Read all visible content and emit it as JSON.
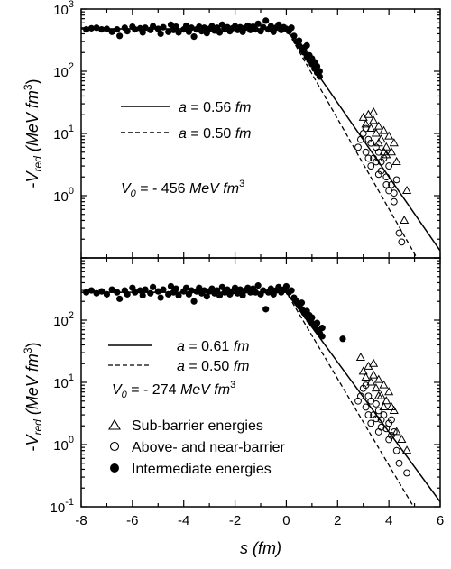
{
  "chart_data": [
    {
      "type": "scatter",
      "panel": "top",
      "ylabel": "-V_red (MeV fm^3)",
      "ylabel_parts": {
        "minus": "-",
        "v": "V",
        "sub": "red",
        "unit": "(MeV fm",
        "exp": "3",
        "close": ")"
      },
      "xlim": [
        -8,
        6
      ],
      "ylim_log10": [
        -1,
        3
      ],
      "yscale": "log",
      "yticks": [
        {
          "exp10": 3,
          "base": "10",
          "sup": "3"
        },
        {
          "exp10": 2,
          "base": "10",
          "sup": "2"
        },
        {
          "exp10": 1,
          "base": "10",
          "sup": "1"
        },
        {
          "exp10": 0,
          "base": "10",
          "sup": "0"
        }
      ],
      "annotations": {
        "line1": {
          "pre": "a",
          "eq": " = 0.56 ",
          "unit": "fm"
        },
        "line2": {
          "pre": "a",
          "eq": " = 0.50 ",
          "unit": "fm"
        },
        "v0": {
          "v": "V",
          "sub": "0",
          "eq": " = - 456 ",
          "unit": "MeV fm",
          "sup": "3"
        }
      },
      "series": [
        {
          "style": "solid",
          "x": [
            -8,
            0,
            6
          ],
          "y": [
            480,
            480,
            0.13
          ]
        },
        {
          "style": "dashed",
          "x": [
            -8,
            0,
            6
          ],
          "y": [
            480,
            480,
            0.022
          ]
        }
      ],
      "points_intermediate": [
        [
          -7.8,
          470
        ],
        [
          -7.6,
          490
        ],
        [
          -7.4,
          500
        ],
        [
          -7.2,
          470
        ],
        [
          -7.0,
          480
        ],
        [
          -6.8,
          430
        ],
        [
          -6.6,
          470
        ],
        [
          -6.5,
          370
        ],
        [
          -6.3,
          500
        ],
        [
          -6.2,
          440
        ],
        [
          -6.0,
          520
        ],
        [
          -5.9,
          470
        ],
        [
          -5.7,
          490
        ],
        [
          -5.6,
          420
        ],
        [
          -5.5,
          500
        ],
        [
          -5.3,
          460
        ],
        [
          -5.2,
          530
        ],
        [
          -5.0,
          480
        ],
        [
          -4.9,
          400
        ],
        [
          -4.8,
          510
        ],
        [
          -4.6,
          430
        ],
        [
          -4.5,
          560
        ],
        [
          -4.4,
          460
        ],
        [
          -4.3,
          520
        ],
        [
          -4.2,
          420
        ],
        [
          -4.0,
          470
        ],
        [
          -3.9,
          540
        ],
        [
          -3.8,
          430
        ],
        [
          -3.7,
          500
        ],
        [
          -3.6,
          360
        ],
        [
          -3.5,
          470
        ],
        [
          -3.4,
          520
        ],
        [
          -3.3,
          440
        ],
        [
          -3.2,
          500
        ],
        [
          -3.1,
          410
        ],
        [
          -3.0,
          480
        ],
        [
          -2.9,
          530
        ],
        [
          -2.8,
          450
        ],
        [
          -2.7,
          500
        ],
        [
          -2.6,
          420
        ],
        [
          -2.5,
          560
        ],
        [
          -2.4,
          470
        ],
        [
          -2.3,
          510
        ],
        [
          -2.2,
          440
        ],
        [
          -2.1,
          490
        ],
        [
          -2.0,
          530
        ],
        [
          -1.9,
          460
        ],
        [
          -1.8,
          510
        ],
        [
          -1.7,
          430
        ],
        [
          -1.6,
          500
        ],
        [
          -1.5,
          540
        ],
        [
          -1.4,
          460
        ],
        [
          -1.3,
          520
        ],
        [
          -1.2,
          470
        ],
        [
          -1.1,
          580
        ],
        [
          -1.0,
          440
        ],
        [
          -0.9,
          510
        ],
        [
          -0.8,
          650
        ],
        [
          -0.7,
          470
        ],
        [
          -0.6,
          530
        ],
        [
          -0.5,
          430
        ],
        [
          -0.4,
          500
        ],
        [
          -0.3,
          560
        ],
        [
          -0.2,
          460
        ],
        [
          -0.1,
          510
        ],
        [
          0.0,
          480
        ],
        [
          0.1,
          440
        ],
        [
          0.2,
          500
        ],
        [
          0.3,
          370
        ],
        [
          0.4,
          300
        ],
        [
          0.5,
          260
        ],
        [
          0.6,
          220
        ],
        [
          0.7,
          200
        ],
        [
          0.8,
          170
        ],
        [
          0.9,
          150
        ],
        [
          1.0,
          130
        ],
        [
          1.1,
          110
        ],
        [
          1.2,
          95
        ],
        [
          1.3,
          82
        ],
        [
          0.5,
          310
        ],
        [
          0.7,
          240
        ],
        [
          0.9,
          180
        ],
        [
          1.1,
          140
        ],
        [
          1.2,
          120
        ],
        [
          0.8,
          260
        ],
        [
          1.0,
          160
        ],
        [
          1.3,
          100
        ]
      ],
      "points_above": [
        [
          2.8,
          6
        ],
        [
          3.0,
          10
        ],
        [
          3.1,
          5
        ],
        [
          3.2,
          8
        ],
        [
          3.3,
          7
        ],
        [
          3.4,
          4
        ],
        [
          3.5,
          6
        ],
        [
          3.6,
          5
        ],
        [
          3.7,
          3.5
        ],
        [
          3.8,
          4
        ],
        [
          3.9,
          2
        ],
        [
          4.0,
          3
        ],
        [
          4.1,
          1.5
        ],
        [
          4.2,
          1.1
        ],
        [
          3.3,
          3
        ],
        [
          3.5,
          3.5
        ],
        [
          3.7,
          2.5
        ],
        [
          3.9,
          1.5
        ],
        [
          4.4,
          0.25
        ],
        [
          4.5,
          0.18
        ],
        [
          3.1,
          12
        ],
        [
          2.9,
          8
        ],
        [
          3.2,
          4
        ],
        [
          3.6,
          2.2
        ],
        [
          4.0,
          1.2
        ],
        [
          4.3,
          1.8
        ],
        [
          4.2,
          0.8
        ]
      ],
      "points_sub": [
        [
          3.0,
          18
        ],
        [
          3.1,
          14
        ],
        [
          3.2,
          20
        ],
        [
          3.3,
          12
        ],
        [
          3.4,
          16
        ],
        [
          3.5,
          10
        ],
        [
          3.6,
          13
        ],
        [
          3.7,
          8
        ],
        [
          3.8,
          11
        ],
        [
          3.9,
          6
        ],
        [
          4.0,
          9
        ],
        [
          4.1,
          5
        ],
        [
          4.2,
          7
        ],
        [
          3.4,
          22
        ],
        [
          3.8,
          5
        ],
        [
          4.3,
          3.5
        ],
        [
          4.6,
          0.4
        ],
        [
          4.7,
          1.2
        ],
        [
          3.6,
          7
        ],
        [
          3.9,
          4.5
        ]
      ]
    },
    {
      "type": "scatter",
      "panel": "bottom",
      "xlabel_parts": {
        "s": "s",
        "unit": " (fm)"
      },
      "ylabel": "-V_red (MeV fm^3)",
      "ylabel_parts": {
        "minus": "-",
        "v": "V",
        "sub": "red",
        "unit": "(MeV fm",
        "exp": "3",
        "close": ")"
      },
      "xlim": [
        -8,
        6
      ],
      "xticks": [
        "-8",
        "-6",
        "-4",
        "-2",
        "0",
        "2",
        "4",
        "6"
      ],
      "ylim_log10": [
        -1,
        3
      ],
      "yscale": "log",
      "yticks": [
        {
          "exp10": 2,
          "base": "10",
          "sup": "2"
        },
        {
          "exp10": 1,
          "base": "10",
          "sup": "1"
        },
        {
          "exp10": 0,
          "base": "10",
          "sup": "0"
        },
        {
          "exp10": -1,
          "base": "10",
          "sup": "-1"
        }
      ],
      "annotations": {
        "line1": {
          "pre": "a",
          "eq": " = 0.61 ",
          "unit": "fm"
        },
        "line2": {
          "pre": "a",
          "eq": " = 0.50 ",
          "unit": "fm"
        },
        "v0": {
          "v": "V",
          "sub": "0",
          "eq": " = - 274 ",
          "unit": "MeV fm",
          "sup": "3"
        }
      },
      "legend": {
        "sub": "Sub-barrier energies",
        "above": "Above- and near-barrier",
        "inter": "Intermediate energies"
      },
      "series": [
        {
          "style": "solid",
          "x": [
            -8,
            0,
            6
          ],
          "y": [
            280,
            280,
            0.12
          ]
        },
        {
          "style": "dashed",
          "x": [
            -8,
            0,
            6
          ],
          "y": [
            280,
            280,
            0.019
          ]
        }
      ],
      "points_intermediate": [
        [
          -7.8,
          280
        ],
        [
          -7.6,
          300
        ],
        [
          -7.4,
          270
        ],
        [
          -7.2,
          290
        ],
        [
          -7.0,
          260
        ],
        [
          -6.8,
          310
        ],
        [
          -6.6,
          280
        ],
        [
          -6.5,
          220
        ],
        [
          -6.3,
          300
        ],
        [
          -6.2,
          260
        ],
        [
          -6.0,
          330
        ],
        [
          -5.9,
          280
        ],
        [
          -5.7,
          300
        ],
        [
          -5.6,
          250
        ],
        [
          -5.5,
          310
        ],
        [
          -5.3,
          270
        ],
        [
          -5.2,
          340
        ],
        [
          -5.0,
          290
        ],
        [
          -4.9,
          230
        ],
        [
          -4.8,
          310
        ],
        [
          -4.6,
          260
        ],
        [
          -4.5,
          350
        ],
        [
          -4.4,
          280
        ],
        [
          -4.3,
          320
        ],
        [
          -4.2,
          250
        ],
        [
          -4.0,
          290
        ],
        [
          -3.9,
          330
        ],
        [
          -3.8,
          260
        ],
        [
          -3.7,
          300
        ],
        [
          -3.6,
          200
        ],
        [
          -3.5,
          290
        ],
        [
          -3.4,
          330
        ],
        [
          -3.3,
          270
        ],
        [
          -3.2,
          300
        ],
        [
          -3.1,
          240
        ],
        [
          -3.0,
          290
        ],
        [
          -2.9,
          320
        ],
        [
          -2.8,
          270
        ],
        [
          -2.7,
          300
        ],
        [
          -2.6,
          250
        ],
        [
          -2.5,
          340
        ],
        [
          -2.4,
          280
        ],
        [
          -2.3,
          310
        ],
        [
          -2.2,
          260
        ],
        [
          -2.1,
          290
        ],
        [
          -2.0,
          330
        ],
        [
          -1.9,
          270
        ],
        [
          -1.8,
          310
        ],
        [
          -1.7,
          250
        ],
        [
          -1.6,
          300
        ],
        [
          -1.5,
          330
        ],
        [
          -1.4,
          280
        ],
        [
          -1.3,
          320
        ],
        [
          -1.2,
          280
        ],
        [
          -1.1,
          360
        ],
        [
          -1.0,
          260
        ],
        [
          -0.9,
          300
        ],
        [
          -0.8,
          150
        ],
        [
          -0.7,
          280
        ],
        [
          -0.6,
          320
        ],
        [
          -0.5,
          260
        ],
        [
          -0.4,
          300
        ],
        [
          -0.3,
          340
        ],
        [
          -0.2,
          280
        ],
        [
          -0.1,
          310
        ],
        [
          0.0,
          350
        ],
        [
          0.1,
          280
        ],
        [
          0.2,
          300
        ],
        [
          0.3,
          230
        ],
        [
          0.4,
          200
        ],
        [
          0.5,
          170
        ],
        [
          0.6,
          150
        ],
        [
          0.7,
          130
        ],
        [
          0.8,
          115
        ],
        [
          0.9,
          100
        ],
        [
          1.0,
          90
        ],
        [
          1.1,
          80
        ],
        [
          1.2,
          70
        ],
        [
          1.3,
          62
        ],
        [
          1.4,
          55
        ],
        [
          0.6,
          190
        ],
        [
          0.8,
          140
        ],
        [
          1.0,
          110
        ],
        [
          1.2,
          90
        ],
        [
          1.4,
          75
        ],
        [
          0.9,
          120
        ],
        [
          2.2,
          50
        ]
      ],
      "points_above": [
        [
          2.8,
          5
        ],
        [
          3.0,
          8
        ],
        [
          3.1,
          4
        ],
        [
          3.2,
          6
        ],
        [
          3.3,
          5
        ],
        [
          3.4,
          3
        ],
        [
          3.5,
          4.5
        ],
        [
          3.6,
          3.5
        ],
        [
          3.7,
          2.5
        ],
        [
          3.8,
          3
        ],
        [
          3.9,
          1.8
        ],
        [
          4.0,
          2.2
        ],
        [
          4.1,
          1.4
        ],
        [
          4.2,
          1.6
        ],
        [
          3.3,
          2.2
        ],
        [
          3.5,
          2.6
        ],
        [
          3.7,
          1.9
        ],
        [
          4.0,
          1.2
        ],
        [
          4.4,
          0.5
        ],
        [
          4.7,
          0.35
        ],
        [
          3.1,
          9
        ],
        [
          2.9,
          6
        ],
        [
          3.2,
          3
        ],
        [
          3.6,
          1.6
        ],
        [
          4.3,
          0.8
        ],
        [
          4.1,
          2.5
        ]
      ],
      "points_sub": [
        [
          2.9,
          25
        ],
        [
          3.0,
          15
        ],
        [
          3.1,
          12
        ],
        [
          3.2,
          18
        ],
        [
          3.3,
          10
        ],
        [
          3.4,
          13
        ],
        [
          3.5,
          8
        ],
        [
          3.6,
          11
        ],
        [
          3.7,
          6
        ],
        [
          3.8,
          9
        ],
        [
          3.9,
          5
        ],
        [
          4.0,
          7
        ],
        [
          4.1,
          4
        ],
        [
          4.2,
          3.5
        ],
        [
          3.4,
          20
        ],
        [
          3.8,
          4
        ],
        [
          4.3,
          1.6
        ],
        [
          4.5,
          1.2
        ],
        [
          4.7,
          0.8
        ],
        [
          3.6,
          6
        ]
      ]
    }
  ]
}
